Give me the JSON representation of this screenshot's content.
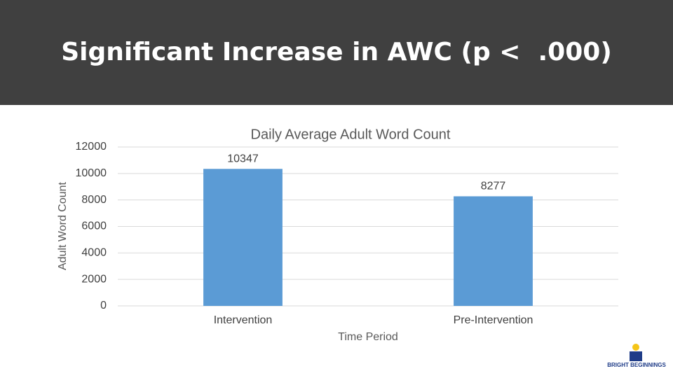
{
  "slide": {
    "title": "Significant Increase in AWC (p <  .000)"
  },
  "chart_data": {
    "type": "bar",
    "title": "Daily Average Adult Word Count",
    "x_label": "Time Period",
    "y_label": "Adult Word Count",
    "categories": [
      "Intervention",
      "Pre-Intervention"
    ],
    "values": [
      10347,
      8277
    ],
    "color": "#5b9bd5",
    "ylim": [
      0,
      12000
    ],
    "yticks": [
      0,
      2000,
      4000,
      6000,
      8000,
      10000,
      12000
    ],
    "grid": true,
    "data_labels": true
  },
  "logo": {
    "text": "BRIGHT BEGINNINGS"
  }
}
